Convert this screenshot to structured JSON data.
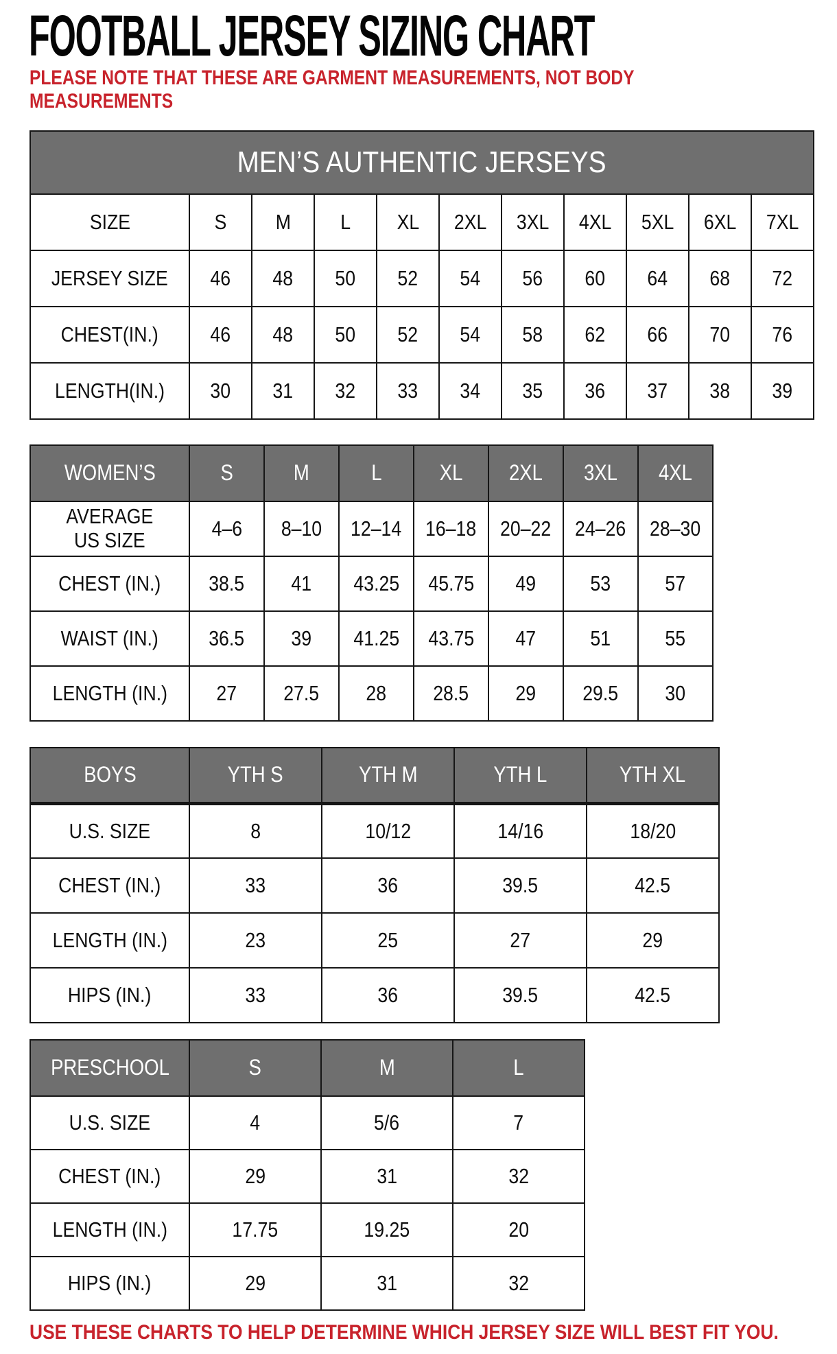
{
  "page": {
    "title": "FOOTBALL JERSEY SIZING CHART",
    "note_lines": [
      "PLEASE NOTE THAT THESE ARE GARMENT MEASUREMENTS, NOT BODY",
      "MEASUREMENTS"
    ],
    "footer": "USE THESE CHARTS TO HELP DETERMINE WHICH JERSEY SIZE WILL BEST FIT YOU."
  },
  "colors": {
    "accent_red": "#C8232C",
    "header_gray": "#6F6F6F",
    "header_text": "#FFFFFF",
    "border_black": "#161616"
  },
  "tables": [
    {
      "id": "mens",
      "banner": "MEN’S AUTHENTIC JERSEYS",
      "rows": [
        {
          "label": "SIZE",
          "cells": [
            "S",
            "M",
            "L",
            "XL",
            "2XL",
            "3XL",
            "4XL",
            "5XL",
            "6XL",
            "7XL"
          ]
        },
        {
          "label": "JERSEY SIZE",
          "cells": [
            "46",
            "48",
            "50",
            "52",
            "54",
            "56",
            "60",
            "64",
            "68",
            "72"
          ]
        },
        {
          "label": "CHEST(IN.)",
          "cells": [
            "46",
            "48",
            "50",
            "52",
            "54",
            "58",
            "62",
            "66",
            "70",
            "76"
          ]
        },
        {
          "label": "LENGTH(IN.)",
          "cells": [
            "30",
            "31",
            "32",
            "33",
            "34",
            "35",
            "36",
            "37",
            "38",
            "39"
          ]
        }
      ]
    },
    {
      "id": "womens",
      "header": {
        "label": "WOMEN’S",
        "cells": [
          "S",
          "M",
          "L",
          "XL",
          "2XL",
          "3XL",
          "4XL"
        ]
      },
      "rows": [
        {
          "label": [
            "AVERAGE",
            "US SIZE"
          ],
          "cells": [
            "4–6",
            "8–10",
            "12–14",
            "16–18",
            "20–22",
            "24–26",
            "28–30"
          ]
        },
        {
          "label": "CHEST (IN.)",
          "cells": [
            "38.5",
            "41",
            "43.25",
            "45.75",
            "49",
            "53",
            "57"
          ]
        },
        {
          "label": "WAIST (IN.)",
          "cells": [
            "36.5",
            "39",
            "41.25",
            "43.75",
            "47",
            "51",
            "55"
          ]
        },
        {
          "label": "LENGTH (IN.)",
          "cells": [
            "27",
            "27.5",
            "28",
            "28.5",
            "29",
            "29.5",
            "30"
          ]
        }
      ]
    },
    {
      "id": "boys",
      "header": {
        "label": "BOYS",
        "cells": [
          "YTH S",
          "YTH M",
          "YTH L",
          "YTH XL"
        ]
      },
      "rows": [
        {
          "label": "U.S. SIZE",
          "cells": [
            "8",
            "10/12",
            "14/16",
            "18/20"
          ]
        },
        {
          "label": "CHEST (IN.)",
          "cells": [
            "33",
            "36",
            "39.5",
            "42.5"
          ]
        },
        {
          "label": "LENGTH (IN.)",
          "cells": [
            "23",
            "25",
            "27",
            "29"
          ]
        },
        {
          "label": "HIPS (IN.)",
          "cells": [
            "33",
            "36",
            "39.5",
            "42.5"
          ]
        }
      ]
    },
    {
      "id": "preschool",
      "header": {
        "label": "PRESCHOOL",
        "cells": [
          "S",
          "M",
          "L"
        ]
      },
      "rows": [
        {
          "label": "U.S. SIZE",
          "cells": [
            "4",
            "5/6",
            "7"
          ]
        },
        {
          "label": "CHEST (IN.)",
          "cells": [
            "29",
            "31",
            "32"
          ]
        },
        {
          "label": "LENGTH (IN.)",
          "cells": [
            "17.75",
            "19.25",
            "20"
          ]
        },
        {
          "label": "HIPS (IN.)",
          "cells": [
            "29",
            "31",
            "32"
          ]
        }
      ]
    }
  ]
}
